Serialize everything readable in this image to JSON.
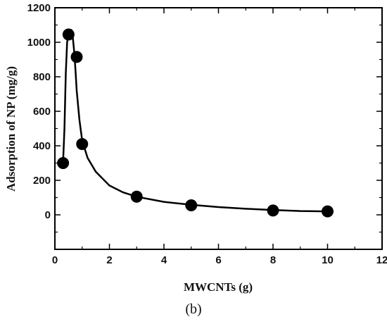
{
  "panel_label": "(b)",
  "chart_data": {
    "type": "scatter",
    "title": "",
    "xlabel": "MWCNTs (g)",
    "ylabel": "Adsorption of NP (mg/g)",
    "xlim": [
      0,
      12
    ],
    "ylim": [
      -200,
      1200
    ],
    "xticks": [
      0,
      2,
      4,
      6,
      8,
      10,
      12
    ],
    "yticks": [
      0,
      200,
      400,
      600,
      800,
      1000,
      1200
    ],
    "grid": false,
    "series": [
      {
        "x": [
          0.3,
          0.5,
          0.8,
          1.0,
          3.0,
          5.0,
          8.0,
          10.0
        ],
        "y": [
          300,
          1045,
          915,
          410,
          105,
          55,
          25,
          20
        ],
        "marker": "filled-circle",
        "color": "#000000"
      }
    ],
    "fit_curve": {
      "x": [
        0.3,
        0.35,
        0.4,
        0.45,
        0.5,
        0.55,
        0.6,
        0.65,
        0.7,
        0.75,
        0.8,
        0.9,
        1.0,
        1.2,
        1.5,
        2.0,
        2.5,
        3.0,
        4.0,
        5.0,
        6.0,
        7.0,
        8.0,
        9.0,
        10.0
      ],
      "y": [
        300,
        500,
        820,
        1000,
        1050,
        1065,
        1070,
        1040,
        960,
        850,
        720,
        550,
        430,
        330,
        250,
        170,
        130,
        105,
        75,
        58,
        45,
        35,
        28,
        22,
        20
      ],
      "color": "#000000"
    }
  }
}
